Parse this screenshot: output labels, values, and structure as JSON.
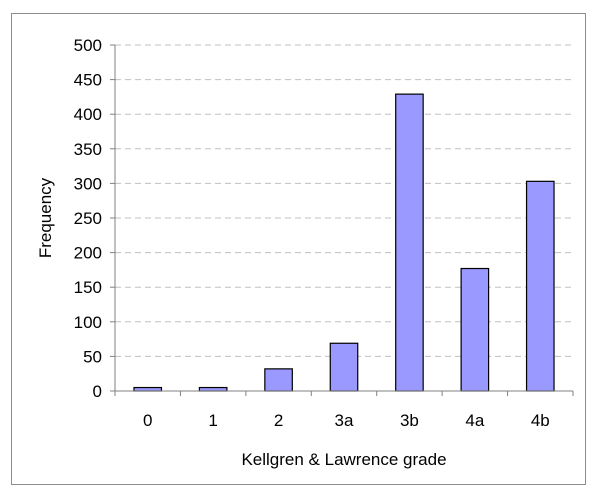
{
  "chart_data": {
    "type": "bar",
    "title": "",
    "xlabel": "Kellgren & Lawrence grade",
    "ylabel": "Frequency",
    "categories": [
      "0",
      "1",
      "2",
      "3a",
      "3b",
      "4a",
      "4b"
    ],
    "values": [
      5,
      5,
      32,
      69,
      429,
      177,
      303
    ],
    "ylim": [
      0,
      500
    ],
    "yticks": [
      "0",
      "50",
      "100",
      "150",
      "200",
      "250",
      "300",
      "350",
      "400",
      "450",
      "500"
    ],
    "grid": true,
    "legend": "none",
    "colors": {
      "bar_fill": "#9999ff",
      "bar_stroke": "#000000",
      "grid": "#c0c0c0",
      "axis": "#808080",
      "frame": "#8c8c8c"
    }
  }
}
